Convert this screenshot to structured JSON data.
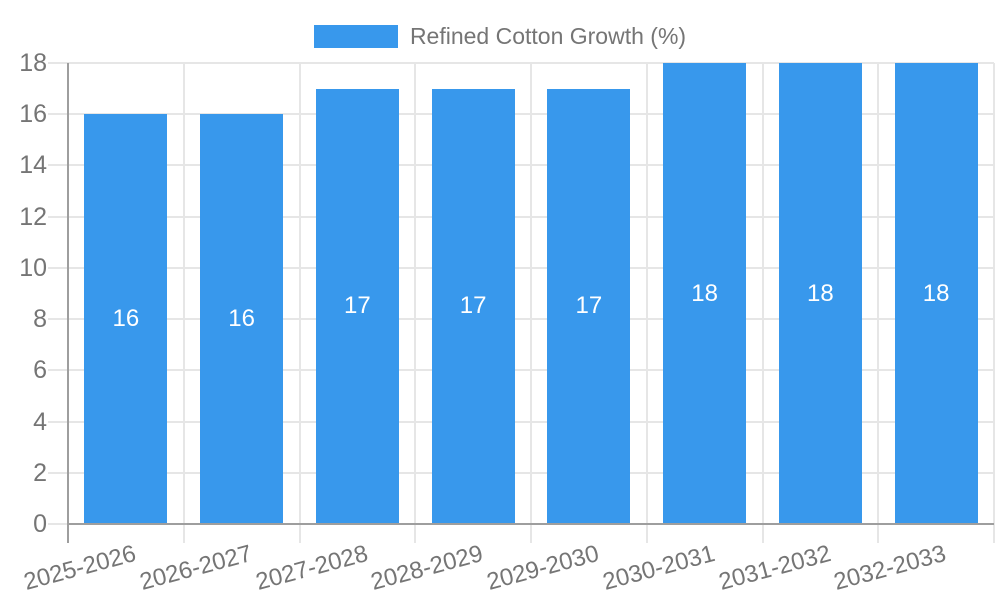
{
  "legend": {
    "label": "Refined Cotton Growth (%)"
  },
  "chart_data": {
    "type": "bar",
    "title": "",
    "xlabel": "",
    "ylabel": "",
    "categories": [
      "2025-2026",
      "2026-2027",
      "2027-2028",
      "2028-2029",
      "2029-2030",
      "2030-2031",
      "2031-2032",
      "2032-2033"
    ],
    "series": [
      {
        "name": "Refined Cotton Growth (%)",
        "values": [
          16,
          16,
          17,
          17,
          17,
          18,
          18,
          18
        ]
      }
    ],
    "bar_value_labels": [
      "16",
      "16",
      "17",
      "17",
      "17",
      "18",
      "18",
      "18"
    ],
    "ylim": [
      0,
      18
    ],
    "yticks": [
      0,
      2,
      4,
      6,
      8,
      10,
      12,
      14,
      16,
      18
    ],
    "grid": true,
    "legend_position": "top",
    "colors": {
      "bar": "#3898ec",
      "axis_text": "#757575",
      "grid_line": "#e6e6e6",
      "axis_line": "#9e9e9e",
      "bar_label": "#ffffff",
      "background": "#ffffff"
    }
  }
}
